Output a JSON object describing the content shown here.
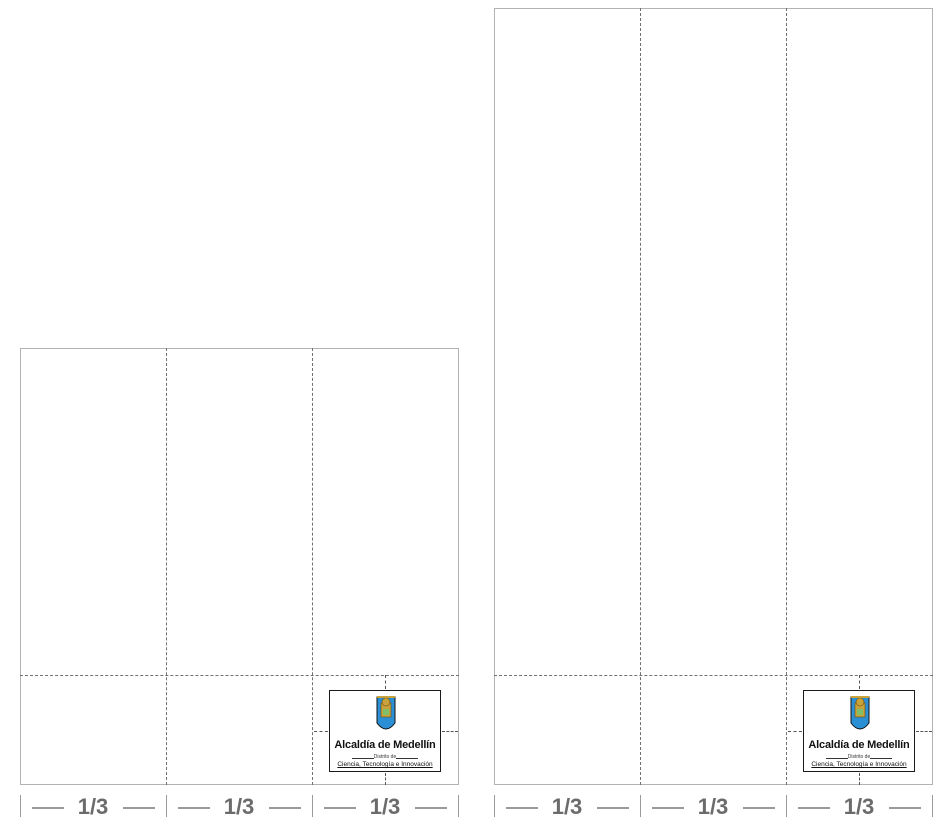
{
  "logo": {
    "name": "Alcaldía de Medellín",
    "subtitle": "Distrito de",
    "tagline": "Ciencia, Tecnología e Innovación",
    "shield_icon": "coat-of-arms-icon",
    "colors": {
      "sky": "#2a8fd4",
      "gold": "#c8a23a",
      "border": "#1a1a1a"
    }
  },
  "scales": {
    "left": {
      "labels": [
        "1/3",
        "1/3",
        "1/3"
      ]
    },
    "right": {
      "labels": [
        "1/3",
        "1/3",
        "1/3"
      ]
    }
  }
}
